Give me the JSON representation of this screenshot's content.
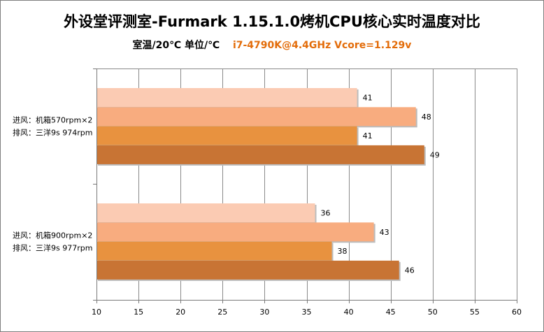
{
  "chart_data": {
    "type": "bar",
    "orientation": "horizontal",
    "title": "外设堂评测室-Furmark  1.15.1.0烤机CPU核心实时温度对比",
    "subtitle_left": "室温/20℃  单位/℃",
    "subtitle_right": "i7-4790K@4.4GHz Vcore=1.129v",
    "xlim": [
      10,
      60
    ],
    "xticks": [
      10,
      15,
      20,
      25,
      30,
      35,
      40,
      45,
      50,
      55,
      60
    ],
    "grid": true,
    "legend": "none",
    "groups": [
      {
        "label_line1": "进风：机箱570rpm×2",
        "label_line2": "排风：三洋9s 974rpm",
        "values": [
          41,
          48,
          41,
          49
        ]
      },
      {
        "label_line1": "进风：机箱900rpm×2",
        "label_line2": "排风：三洋9s 977rpm",
        "values": [
          36,
          43,
          38,
          46
        ]
      }
    ],
    "bar_colors": [
      "#fbcbb3",
      "#f8ac7f",
      "#e8923f",
      "#c87434"
    ]
  }
}
